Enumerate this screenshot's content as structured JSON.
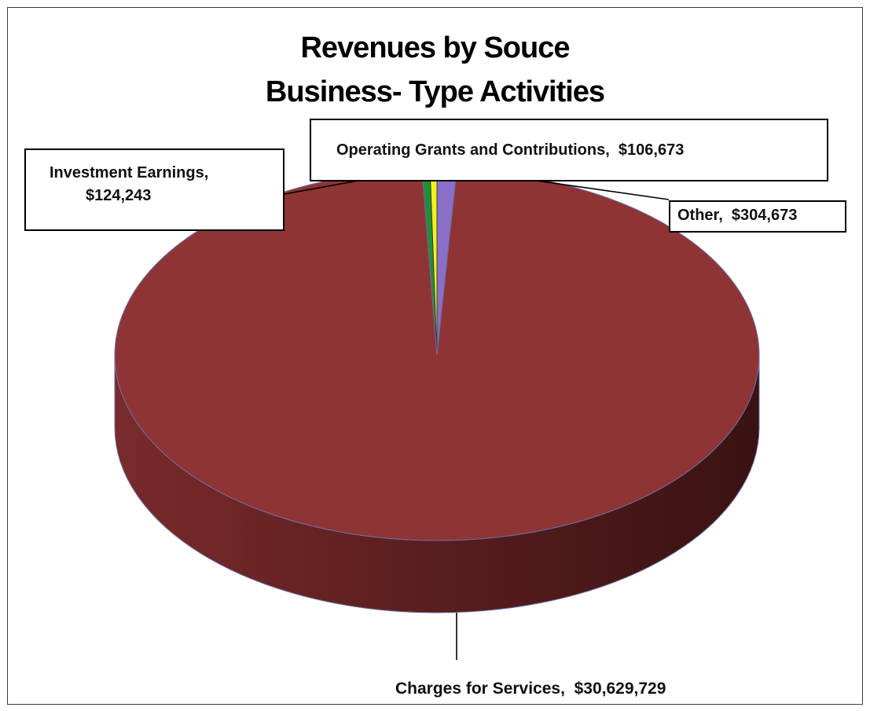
{
  "chart_data": {
    "type": "pie",
    "title": "Revenues by Souce",
    "subtitle": "Business- Type Activities",
    "categories": [
      "Charges for Services",
      "Investment Earnings",
      "Operating Grants and Contributions",
      "Other"
    ],
    "values": [
      30629729,
      124243,
      106673,
      304673
    ],
    "data_labels": [
      "$30,629,729",
      "$124,243",
      "$106,673",
      "$304,673"
    ],
    "colors": [
      "#8f3434",
      "#1f8f3a",
      "#f2f21a",
      "#8a6fc8"
    ],
    "style": "3d",
    "legend": "none"
  }
}
